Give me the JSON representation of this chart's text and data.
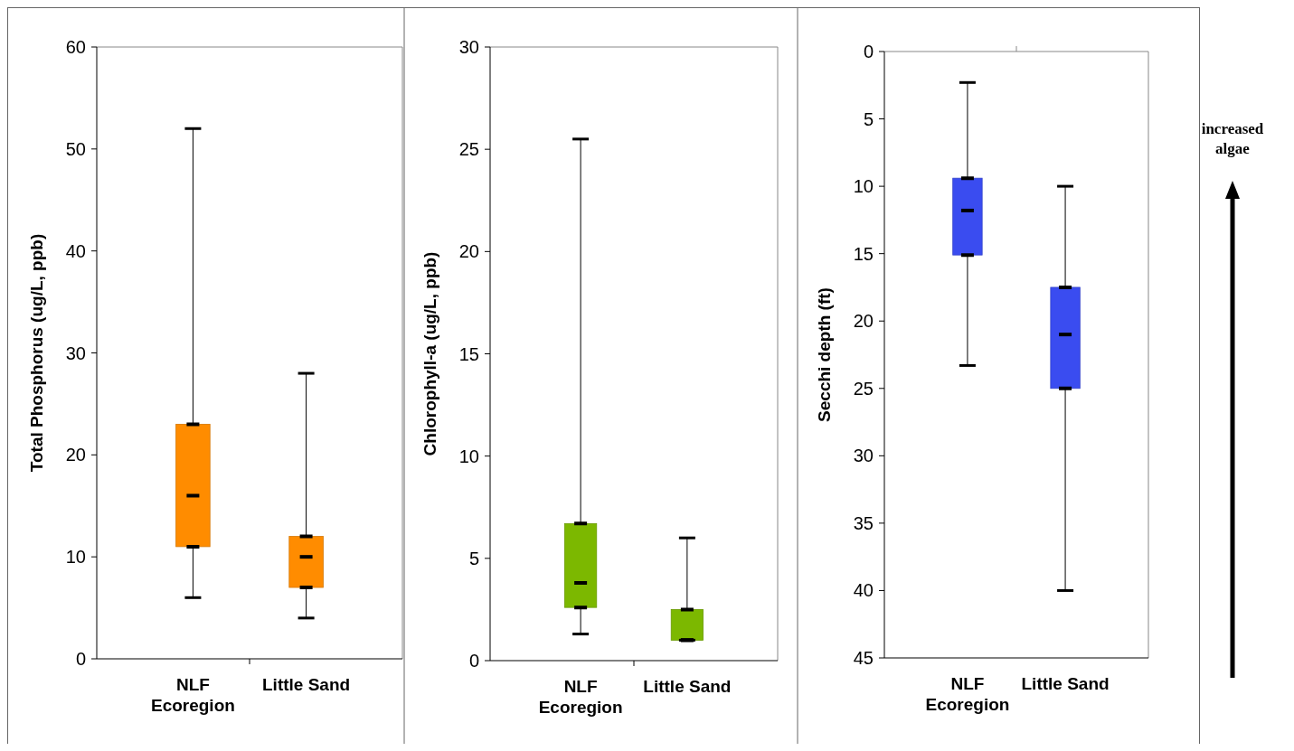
{
  "chart_data": [
    {
      "type": "box",
      "ylabel": "Total Phosphorus (ug/L, ppb)",
      "categories": [
        "NLF Ecoregion",
        "Little Sand"
      ],
      "ylim": [
        0,
        60
      ],
      "yticks": [
        0,
        10,
        20,
        30,
        40,
        50,
        60
      ],
      "grid": false,
      "series": [
        {
          "color": "#ff8c00",
          "boxes": [
            {
              "low": 6,
              "q1": 11,
              "median": 16,
              "q3": 23,
              "high": 52
            },
            {
              "low": 4,
              "q1": 7,
              "median": 10,
              "q3": 12,
              "high": 28
            }
          ]
        }
      ]
    },
    {
      "type": "box",
      "ylabel": "Chlorophyll-a (ug/L, ppb)",
      "categories": [
        "NLF Ecoregion",
        "Little Sand"
      ],
      "ylim": [
        0,
        30
      ],
      "yticks": [
        0,
        5,
        10,
        15,
        20,
        25,
        30
      ],
      "grid": false,
      "series": [
        {
          "color": "#7cb800",
          "boxes": [
            {
              "low": 1.3,
              "q1": 2.6,
              "median": 3.8,
              "q3": 6.7,
              "high": 25.5
            },
            {
              "low": 1,
              "q1": 1,
              "median": 1,
              "q3": 2.5,
              "high": 6
            }
          ]
        }
      ]
    },
    {
      "type": "box",
      "ylabel": "Secchi depth (ft)",
      "categories": [
        "NLF Ecoregion",
        "Little Sand"
      ],
      "ylim": [
        45,
        0
      ],
      "yticks": [
        0,
        5,
        10,
        15,
        20,
        25,
        30,
        35,
        40,
        45
      ],
      "grid": false,
      "annotations": [
        "increased algae"
      ],
      "series": [
        {
          "color": "#3a4cf0",
          "boxes": [
            {
              "low": 2.3,
              "q1": 9.4,
              "median": 11.8,
              "q3": 15.1,
              "high": 23.3
            },
            {
              "low": 10,
              "q1": 17.5,
              "median": 21,
              "q3": 25,
              "high": 40
            }
          ]
        }
      ]
    }
  ]
}
